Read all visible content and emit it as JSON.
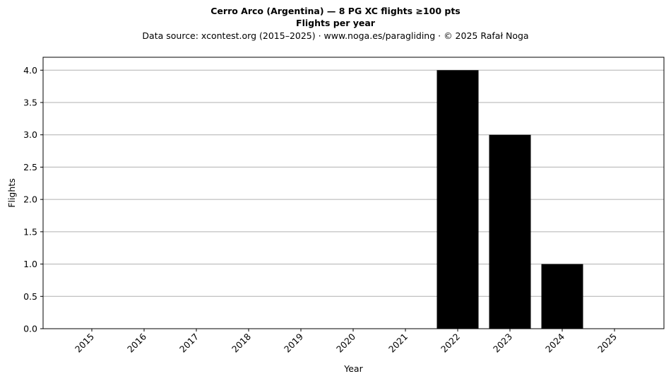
{
  "chart_data": {
    "type": "bar",
    "title": "Cerro Arco (Argentina)  —  8 PG XC flights ≥100 pts",
    "subtitle": "Flights per year",
    "source_line": "Data source: xcontest.org (2015–2025)  ·  www.noga.es/paragliding  ·  © 2025 Rafał Noga",
    "xlabel": "Year",
    "ylabel": "Flights",
    "categories": [
      "2015",
      "2016",
      "2017",
      "2018",
      "2019",
      "2020",
      "2021",
      "2022",
      "2023",
      "2024",
      "2025"
    ],
    "values": [
      0,
      0,
      0,
      0,
      0,
      0,
      0,
      4,
      3,
      1,
      0
    ],
    "ylim": [
      0,
      4.2
    ],
    "yticks": [
      "0.0",
      "0.5",
      "1.0",
      "1.5",
      "2.0",
      "2.5",
      "3.0",
      "3.5",
      "4.0"
    ],
    "ytick_values": [
      0,
      0.5,
      1,
      1.5,
      2,
      2.5,
      3,
      3.5,
      4
    ],
    "grid": "horizontal",
    "bar_color": "#000000",
    "grid_color": "#b0b0b0"
  }
}
